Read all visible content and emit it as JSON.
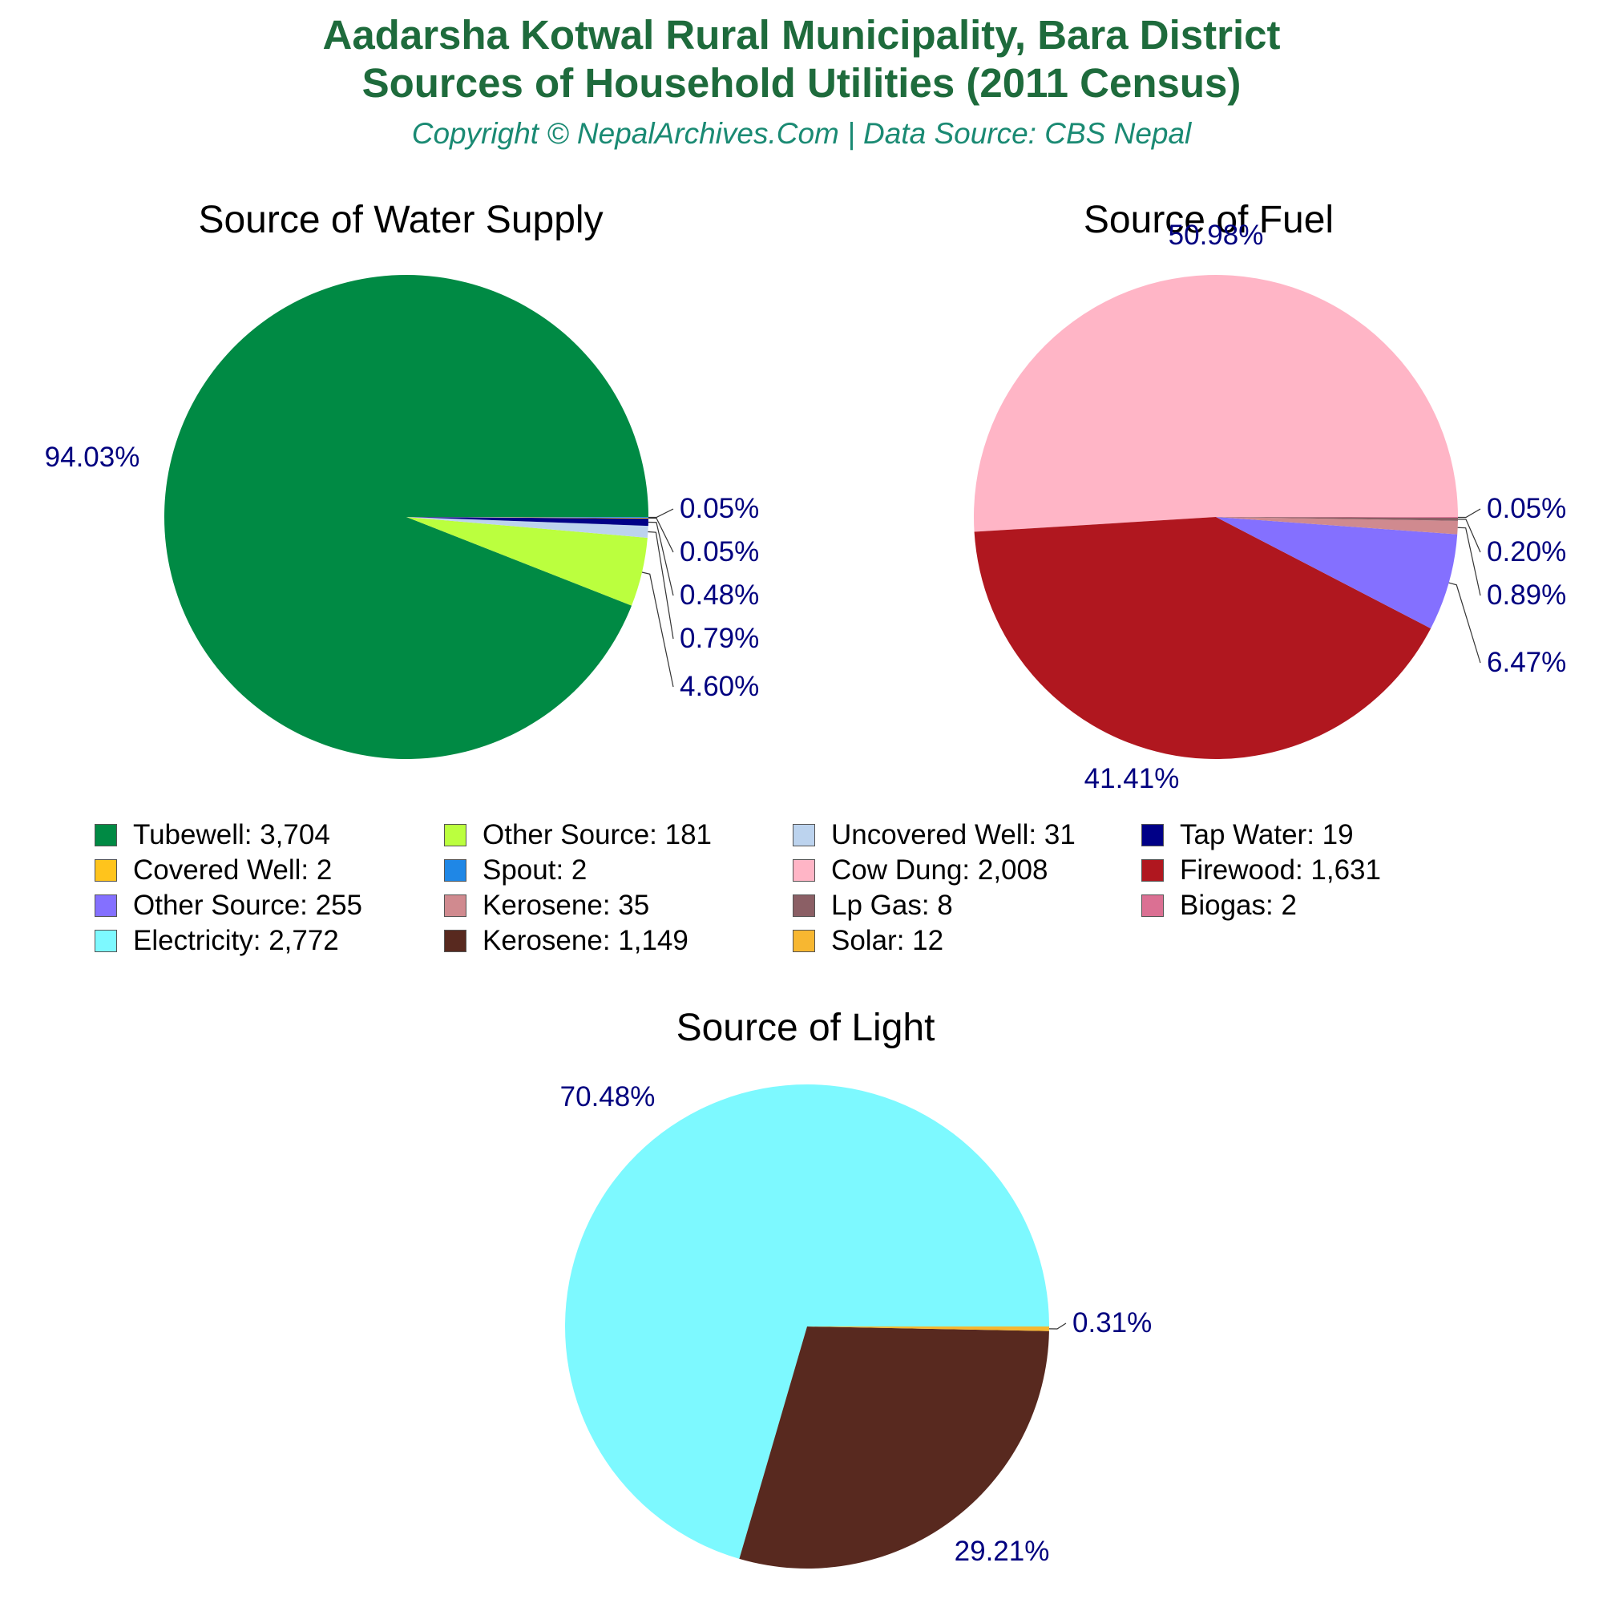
{
  "header": {
    "title_line1": "Aadarsha Kotwal Rural Municipality, Bara District",
    "title_line2": "Sources of Household Utilities (2011 Census)",
    "subtitle": "Copyright © NepalArchives.Com | Data Source: CBS Nepal"
  },
  "colors": {
    "pct_label": "#00007f",
    "title": "#1e6b3c",
    "subtitle": "#1a8a73"
  },
  "chart_data": [
    {
      "type": "pie",
      "title": "Source of Water Supply",
      "slices": [
        {
          "label": "Tubewell",
          "value": 3704,
          "pct": "94.03%",
          "color": "#008a44"
        },
        {
          "label": "Other Source",
          "value": 181,
          "pct": "4.60%",
          "color": "#bbff3e"
        },
        {
          "label": "Uncovered Well",
          "value": 31,
          "pct": "0.79%",
          "color": "#bcd3ee"
        },
        {
          "label": "Tap Water",
          "value": 19,
          "pct": "0.48%",
          "color": "#000087"
        },
        {
          "label": "Covered Well",
          "value": 2,
          "pct": "0.05%",
          "color": "#ffc41c"
        },
        {
          "label": "Spout",
          "value": 2,
          "pct": "0.05%",
          "color": "#1f87e6"
        }
      ]
    },
    {
      "type": "pie",
      "title": "Source of Fuel",
      "slices": [
        {
          "label": "Cow Dung",
          "value": 2008,
          "pct": "50.98%",
          "color": "#ffb5c6"
        },
        {
          "label": "Firewood",
          "value": 1631,
          "pct": "41.41%",
          "color": "#b0171f"
        },
        {
          "label": "Other Source",
          "value": 255,
          "pct": "6.47%",
          "color": "#8470ff"
        },
        {
          "label": "Kerosene",
          "value": 35,
          "pct": "0.89%",
          "color": "#d08a8f"
        },
        {
          "label": "Lp Gas",
          "value": 8,
          "pct": "0.20%",
          "color": "#8b5f65"
        },
        {
          "label": "Biogas",
          "value": 2,
          "pct": "0.05%",
          "color": "#db7093"
        }
      ]
    },
    {
      "type": "pie",
      "title": "Source of Light",
      "slices": [
        {
          "label": "Electricity",
          "value": 2772,
          "pct": "70.48%",
          "color": "#7df9ff"
        },
        {
          "label": "Kerosene",
          "value": 1149,
          "pct": "29.21%",
          "color": "#58291f"
        },
        {
          "label": "Solar",
          "value": 12,
          "pct": "0.31%",
          "color": "#f7b731"
        }
      ]
    }
  ],
  "legend": [
    {
      "text": "Tubewell: 3,704",
      "color": "#008a44"
    },
    {
      "text": "Other Source: 181",
      "color": "#bbff3e"
    },
    {
      "text": "Uncovered Well: 31",
      "color": "#bcd3ee"
    },
    {
      "text": "Tap Water: 19",
      "color": "#000087"
    },
    {
      "text": "Covered Well: 2",
      "color": "#ffc41c"
    },
    {
      "text": "Spout: 2",
      "color": "#1f87e6"
    },
    {
      "text": "Cow Dung: 2,008",
      "color": "#ffb5c6"
    },
    {
      "text": "Firewood: 1,631",
      "color": "#b0171f"
    },
    {
      "text": "Other Source: 255",
      "color": "#8470ff"
    },
    {
      "text": "Kerosene: 35",
      "color": "#d08a8f"
    },
    {
      "text": "Lp Gas: 8",
      "color": "#8b5f65"
    },
    {
      "text": "Biogas: 2",
      "color": "#db7093"
    },
    {
      "text": "Electricity: 2,772",
      "color": "#7df9ff"
    },
    {
      "text": "Kerosene: 1,149",
      "color": "#58291f"
    },
    {
      "text": "Solar: 12",
      "color": "#f7b731"
    }
  ]
}
